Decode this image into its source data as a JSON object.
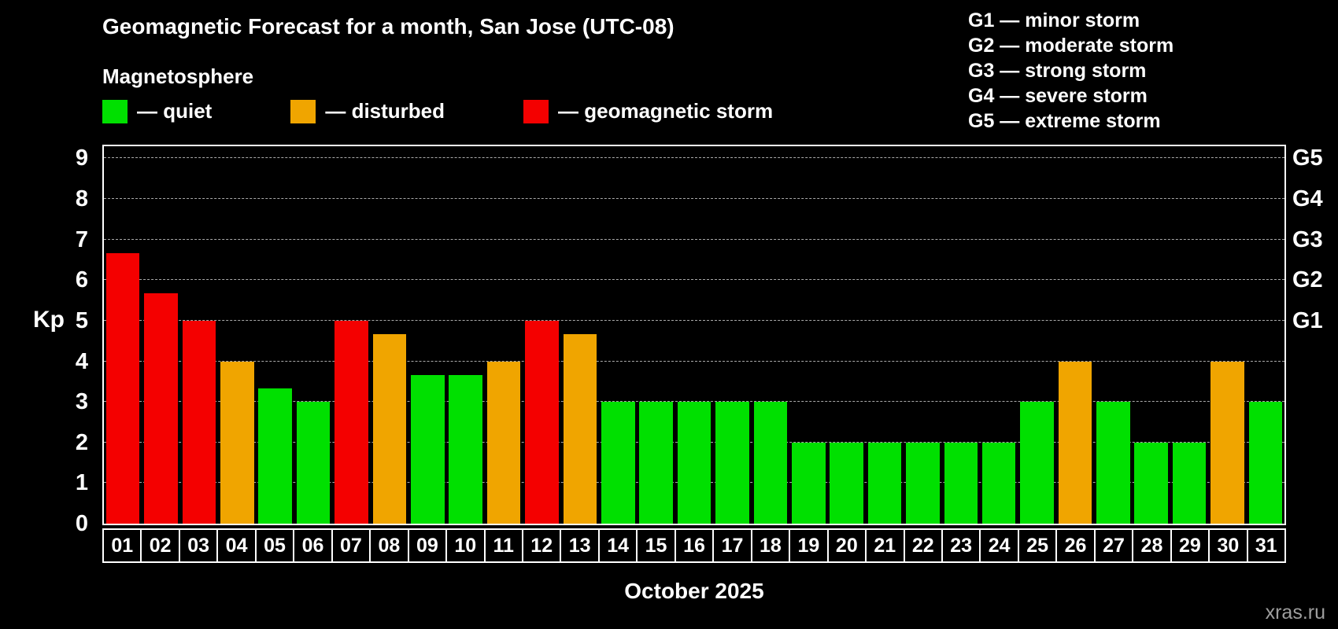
{
  "header": {
    "title": "Geomagnetic Forecast for a month, San Jose (UTC-08)",
    "subtitle": "Magnetosphere"
  },
  "legend": {
    "items": [
      {
        "key": "quiet",
        "label": "— quiet",
        "color": "#00e000"
      },
      {
        "key": "disturbed",
        "label": "— disturbed",
        "color": "#f0a500"
      },
      {
        "key": "storm",
        "label": "— geomagnetic storm",
        "color": "#f40000"
      }
    ]
  },
  "storm_scale_legend": {
    "items": [
      "G1 — minor storm",
      "G2 — moderate storm",
      "G3 — strong storm",
      "G4 — severe storm",
      "G5 — extreme storm"
    ]
  },
  "chart_data": {
    "type": "bar",
    "title": "Geomagnetic Forecast for a month, San Jose (UTC-08)",
    "xlabel": "October 2025",
    "ylabel": "Kp",
    "ylim": [
      0,
      9.3
    ],
    "yticks": [
      0,
      1,
      2,
      3,
      4,
      5,
      6,
      7,
      8,
      9
    ],
    "grid": "dashed horizontal",
    "right_axis_labels": [
      {
        "label": "G1",
        "value": 5
      },
      {
        "label": "G2",
        "value": 6
      },
      {
        "label": "G3",
        "value": 7
      },
      {
        "label": "G4",
        "value": 8
      },
      {
        "label": "G5",
        "value": 9
      }
    ],
    "categories": [
      "01",
      "02",
      "03",
      "04",
      "05",
      "06",
      "07",
      "08",
      "09",
      "10",
      "11",
      "12",
      "13",
      "14",
      "15",
      "16",
      "17",
      "18",
      "19",
      "20",
      "21",
      "22",
      "23",
      "24",
      "25",
      "26",
      "27",
      "28",
      "29",
      "30",
      "31"
    ],
    "values": [
      6.67,
      5.67,
      5.0,
      4.0,
      3.33,
      3.0,
      5.0,
      4.67,
      3.67,
      3.67,
      4.0,
      5.0,
      4.67,
      3.0,
      3.0,
      3.0,
      3.0,
      3.0,
      2.0,
      2.0,
      2.0,
      2.0,
      2.0,
      2.0,
      3.0,
      4.0,
      3.0,
      2.0,
      2.0,
      4.0,
      3.0
    ],
    "levels": [
      "storm",
      "storm",
      "storm",
      "disturbed",
      "quiet",
      "quiet",
      "storm",
      "disturbed",
      "quiet",
      "quiet",
      "disturbed",
      "storm",
      "disturbed",
      "quiet",
      "quiet",
      "quiet",
      "quiet",
      "quiet",
      "quiet",
      "quiet",
      "quiet",
      "quiet",
      "quiet",
      "quiet",
      "quiet",
      "disturbed",
      "quiet",
      "quiet",
      "quiet",
      "disturbed",
      "quiet"
    ]
  },
  "footer": {
    "watermark": "xras.ru"
  }
}
